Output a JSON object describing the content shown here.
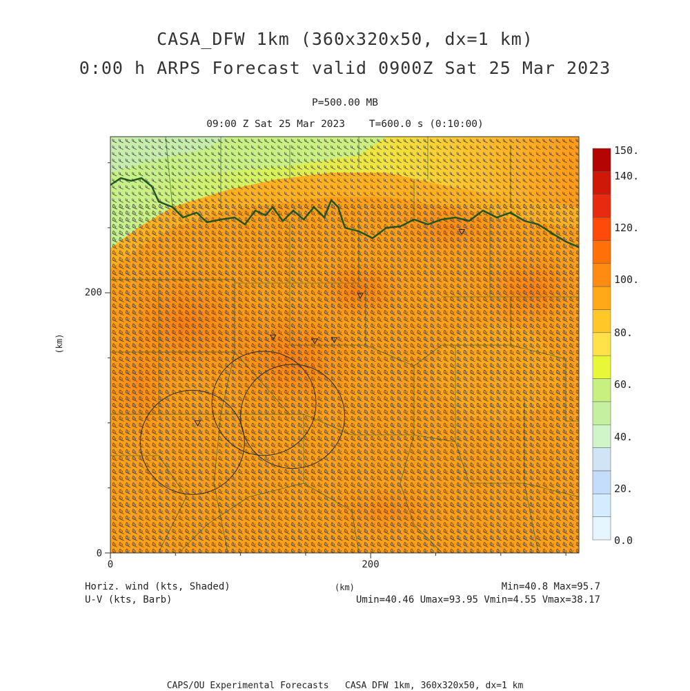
{
  "header": {
    "title_line1": "CASA_DFW 1km (360x320x50, dx=1 km)",
    "title_line2": "0:00 h ARPS Forecast valid 0900Z Sat 25 Mar 2023",
    "level": "P=500.00 MB",
    "valid_time": "09:00 Z Sat 25 Mar 2023    T=600.0 s (0:10:00)"
  },
  "axes": {
    "x_label": "(km)",
    "y_label": "(km)",
    "x_ticks": [
      {
        "value": 0,
        "label": "0"
      },
      {
        "value": 200,
        "label": "200"
      }
    ],
    "y_ticks": [
      {
        "value": 0,
        "label": "0"
      },
      {
        "value": 200,
        "label": "200"
      }
    ],
    "x_range": [
      0,
      360
    ],
    "y_range": [
      0,
      320
    ]
  },
  "colorbar": {
    "labels": [
      "150.",
      "140.",
      "120.",
      "100.",
      "80.",
      "60.",
      "40.",
      "20.",
      "0.0"
    ],
    "colors_bottom_to_top": [
      "#e6f6ff",
      "#d5ecff",
      "#c5dcfa",
      "#d0e4f5",
      "#cff5c8",
      "#c4f0a0",
      "#c8f07e",
      "#e8f838",
      "#ffe24a",
      "#ffc828",
      "#ffa818",
      "#ff8c12",
      "#ff7008",
      "#ff4a0a",
      "#e82a10",
      "#d01808",
      "#b40404"
    ]
  },
  "footer": {
    "var1": "Horiz. wind (kts, Shaded)",
    "var2": "U-V (kts, Barb)",
    "minmax": "Min=40.8 Max=95.7",
    "uv_stats": "Umin=40.46 Umax=93.95 Vmin=4.55 Vmax=38.17",
    "credit": "CAPS/OU Experimental Forecasts   CASA DFW 1km, 360x320x50, dx=1 km"
  },
  "radars": [
    {
      "x": 63,
      "y": 85,
      "radius": 40
    },
    {
      "x": 118,
      "y": 115,
      "radius": 40
    },
    {
      "x": 140,
      "y": 105,
      "radius": 40
    }
  ],
  "radar_markers": [
    {
      "x": 67,
      "y": 100
    },
    {
      "x": 125,
      "y": 166
    },
    {
      "x": 157,
      "y": 163
    },
    {
      "x": 172,
      "y": 164
    },
    {
      "x": 192,
      "y": 198
    },
    {
      "x": 270,
      "y": 247
    }
  ]
}
